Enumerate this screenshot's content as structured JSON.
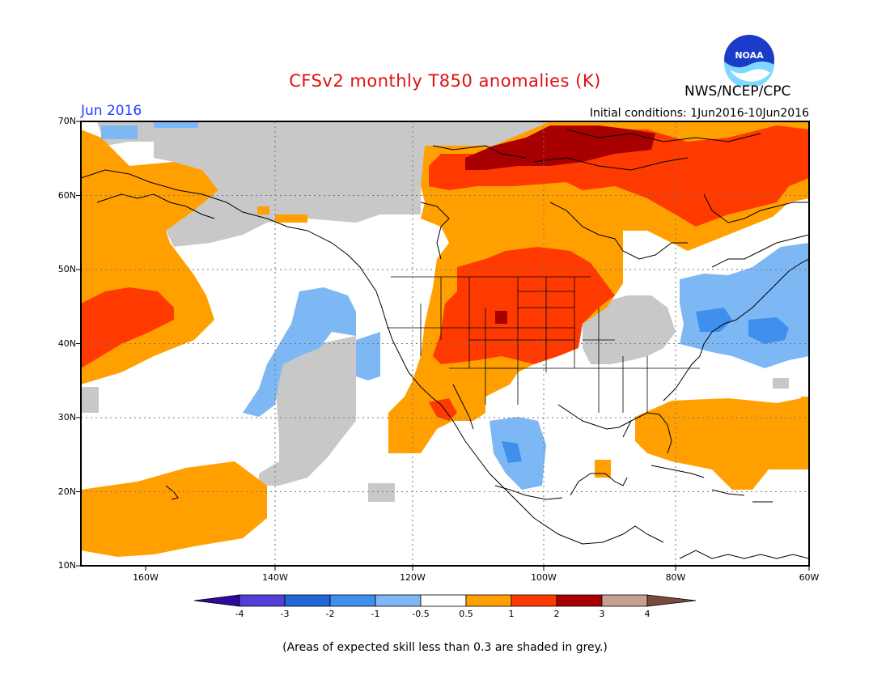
{
  "title": "CFSv2 monthly T850 anomalies (K)",
  "agency": "NWS/NCEP/CPC",
  "valid_month": "Jun 2016",
  "initial_conditions": "Initial conditions: 1Jun2016-10Jun2016",
  "footnote": "(Areas of expected skill less than 0.3 are shaded in grey.)",
  "logo_text": "NOAA",
  "lat_labels": [
    "70N",
    "60N",
    "50N",
    "40N",
    "30N",
    "20N",
    "10N"
  ],
  "lon_labels": [
    "160W",
    "140W",
    "120W",
    "100W",
    "80W",
    "60W"
  ],
  "colorbar": {
    "labels": [
      "-4",
      "-3",
      "-2",
      "-1",
      "-0.5",
      "0.5",
      "1",
      "2",
      "3",
      "4"
    ],
    "colors": [
      "#2c0aa0",
      "#5040d8",
      "#1f66d8",
      "#3f8fee",
      "#7db8f5",
      "#ffffff",
      "#ffa000",
      "#ff3a00",
      "#a80000",
      "#c8a090",
      "#7a4a3a"
    ]
  },
  "legend_colors": {
    "grey": "#c8c8c8",
    "orange": "#ffa000",
    "red": "#ff3a00",
    "darkred": "#a80000",
    "lightblue": "#7db8f5",
    "blue": "#3f8fee"
  }
}
